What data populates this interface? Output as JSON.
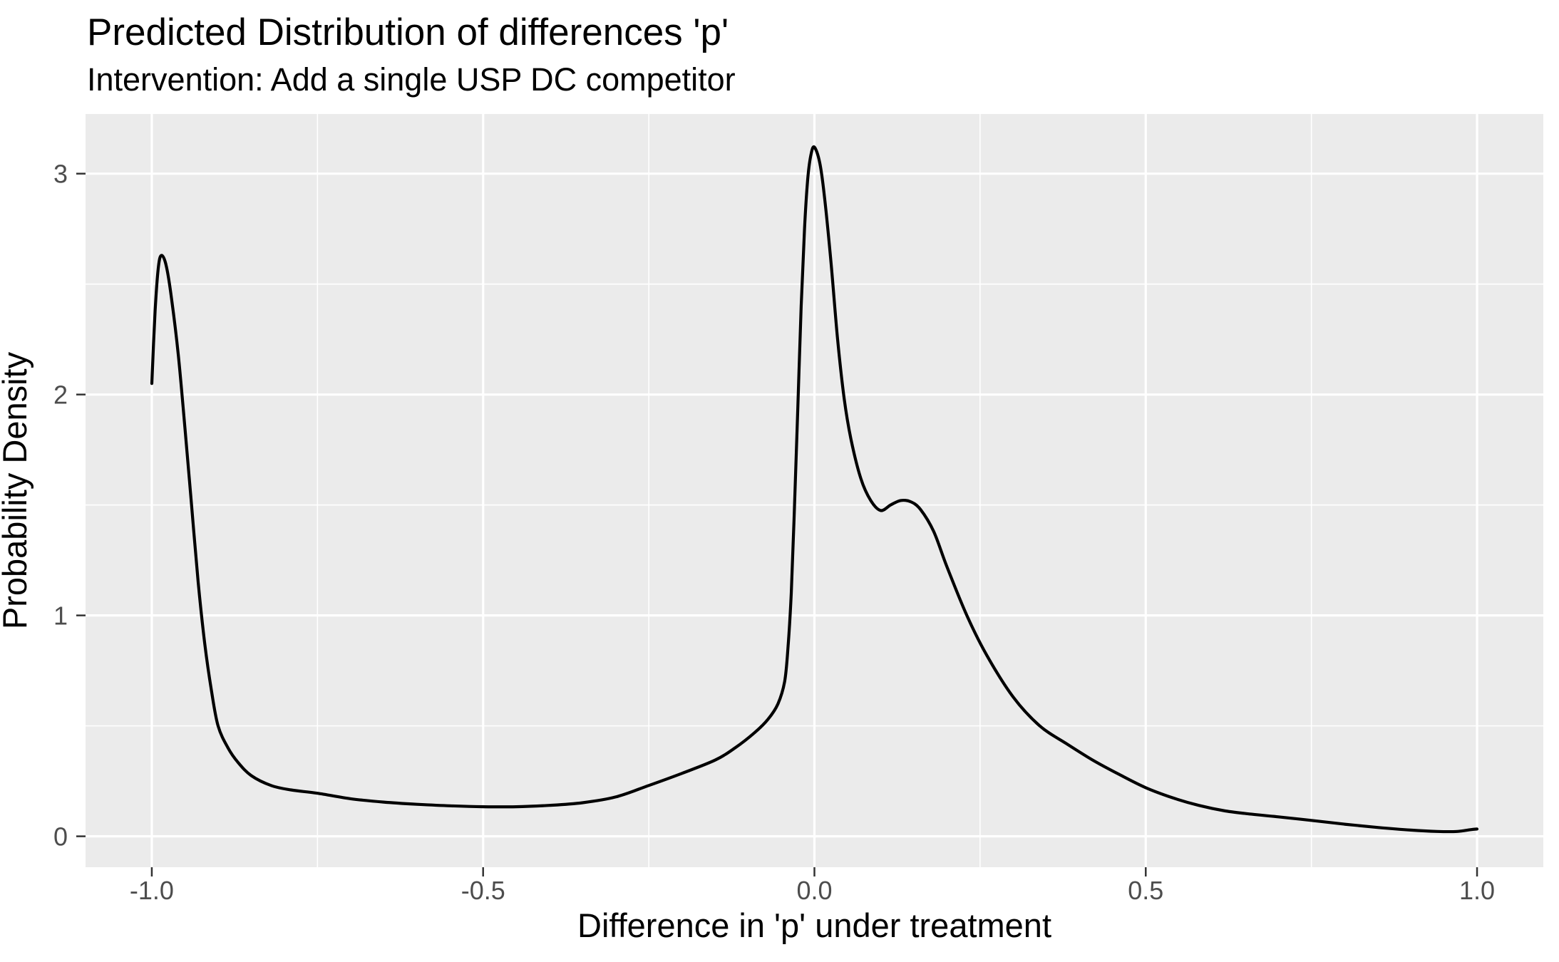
{
  "chart_data": {
    "type": "line",
    "title": "Predicted Distribution of differences 'p'",
    "subtitle": "Intervention: Add a single USP DC competitor",
    "xlabel": "Difference in 'p' under treatment",
    "ylabel": "Probability Density",
    "xlim": [
      -1.1,
      1.1
    ],
    "ylim": [
      -0.14,
      3.27
    ],
    "grid": true,
    "legend": "none",
    "x_ticks": [
      {
        "value": -1.0,
        "label": "-1.0"
      },
      {
        "value": -0.5,
        "label": "-0.5"
      },
      {
        "value": 0.0,
        "label": "0.0"
      },
      {
        "value": 0.5,
        "label": "0.5"
      },
      {
        "value": 1.0,
        "label": "1.0"
      }
    ],
    "y_ticks": [
      {
        "value": 0,
        "label": "0"
      },
      {
        "value": 1,
        "label": "1"
      },
      {
        "value": 2,
        "label": "2"
      },
      {
        "value": 3,
        "label": "3"
      }
    ],
    "x_minor": [
      -0.75,
      -0.25,
      0.25,
      0.75
    ],
    "y_minor": [
      0.5,
      1.5,
      2.5
    ],
    "colors": {
      "page_bg": "#FFFFFF",
      "panel_bg": "#EBEBEB",
      "grid_major": "#FFFFFF",
      "grid_minor": "#FFFFFF",
      "tick_mark": "#333333",
      "tick_label": "#4D4D4D",
      "text": "#000000",
      "line": "#000000"
    },
    "series": [
      {
        "name": "density",
        "color": "#000000",
        "points": [
          [
            -1.0,
            2.05
          ],
          [
            -0.995,
            2.38
          ],
          [
            -0.99,
            2.58
          ],
          [
            -0.985,
            2.63
          ],
          [
            -0.978,
            2.58
          ],
          [
            -0.97,
            2.43
          ],
          [
            -0.96,
            2.18
          ],
          [
            -0.95,
            1.85
          ],
          [
            -0.94,
            1.5
          ],
          [
            -0.93,
            1.15
          ],
          [
            -0.92,
            0.87
          ],
          [
            -0.91,
            0.66
          ],
          [
            -0.9,
            0.5
          ],
          [
            -0.885,
            0.4
          ],
          [
            -0.87,
            0.335
          ],
          [
            -0.85,
            0.275
          ],
          [
            -0.82,
            0.23
          ],
          [
            -0.79,
            0.21
          ],
          [
            -0.75,
            0.195
          ],
          [
            -0.7,
            0.17
          ],
          [
            -0.65,
            0.155
          ],
          [
            -0.6,
            0.145
          ],
          [
            -0.55,
            0.138
          ],
          [
            -0.5,
            0.134
          ],
          [
            -0.45,
            0.134
          ],
          [
            -0.4,
            0.14
          ],
          [
            -0.35,
            0.152
          ],
          [
            -0.3,
            0.178
          ],
          [
            -0.25,
            0.23
          ],
          [
            -0.2,
            0.285
          ],
          [
            -0.15,
            0.345
          ],
          [
            -0.12,
            0.4
          ],
          [
            -0.09,
            0.47
          ],
          [
            -0.07,
            0.53
          ],
          [
            -0.055,
            0.6
          ],
          [
            -0.045,
            0.7
          ],
          [
            -0.04,
            0.85
          ],
          [
            -0.035,
            1.1
          ],
          [
            -0.03,
            1.5
          ],
          [
            -0.025,
            1.95
          ],
          [
            -0.02,
            2.4
          ],
          [
            -0.015,
            2.75
          ],
          [
            -0.01,
            2.98
          ],
          [
            -0.005,
            3.09
          ],
          [
            0.0,
            3.12
          ],
          [
            0.008,
            3.05
          ],
          [
            0.015,
            2.9
          ],
          [
            0.025,
            2.6
          ],
          [
            0.035,
            2.25
          ],
          [
            0.045,
            1.98
          ],
          [
            0.055,
            1.8
          ],
          [
            0.07,
            1.62
          ],
          [
            0.085,
            1.52
          ],
          [
            0.1,
            1.475
          ],
          [
            0.115,
            1.5
          ],
          [
            0.13,
            1.52
          ],
          [
            0.145,
            1.515
          ],
          [
            0.16,
            1.48
          ],
          [
            0.18,
            1.38
          ],
          [
            0.2,
            1.22
          ],
          [
            0.23,
            1.0
          ],
          [
            0.26,
            0.82
          ],
          [
            0.3,
            0.63
          ],
          [
            0.34,
            0.5
          ],
          [
            0.38,
            0.42
          ],
          [
            0.42,
            0.345
          ],
          [
            0.46,
            0.28
          ],
          [
            0.5,
            0.22
          ],
          [
            0.54,
            0.175
          ],
          [
            0.58,
            0.14
          ],
          [
            0.62,
            0.115
          ],
          [
            0.66,
            0.1
          ],
          [
            0.7,
            0.088
          ],
          [
            0.75,
            0.072
          ],
          [
            0.8,
            0.055
          ],
          [
            0.85,
            0.04
          ],
          [
            0.9,
            0.028
          ],
          [
            0.94,
            0.022
          ],
          [
            0.97,
            0.022
          ],
          [
            0.99,
            0.03
          ],
          [
            1.0,
            0.033
          ]
        ]
      }
    ]
  }
}
